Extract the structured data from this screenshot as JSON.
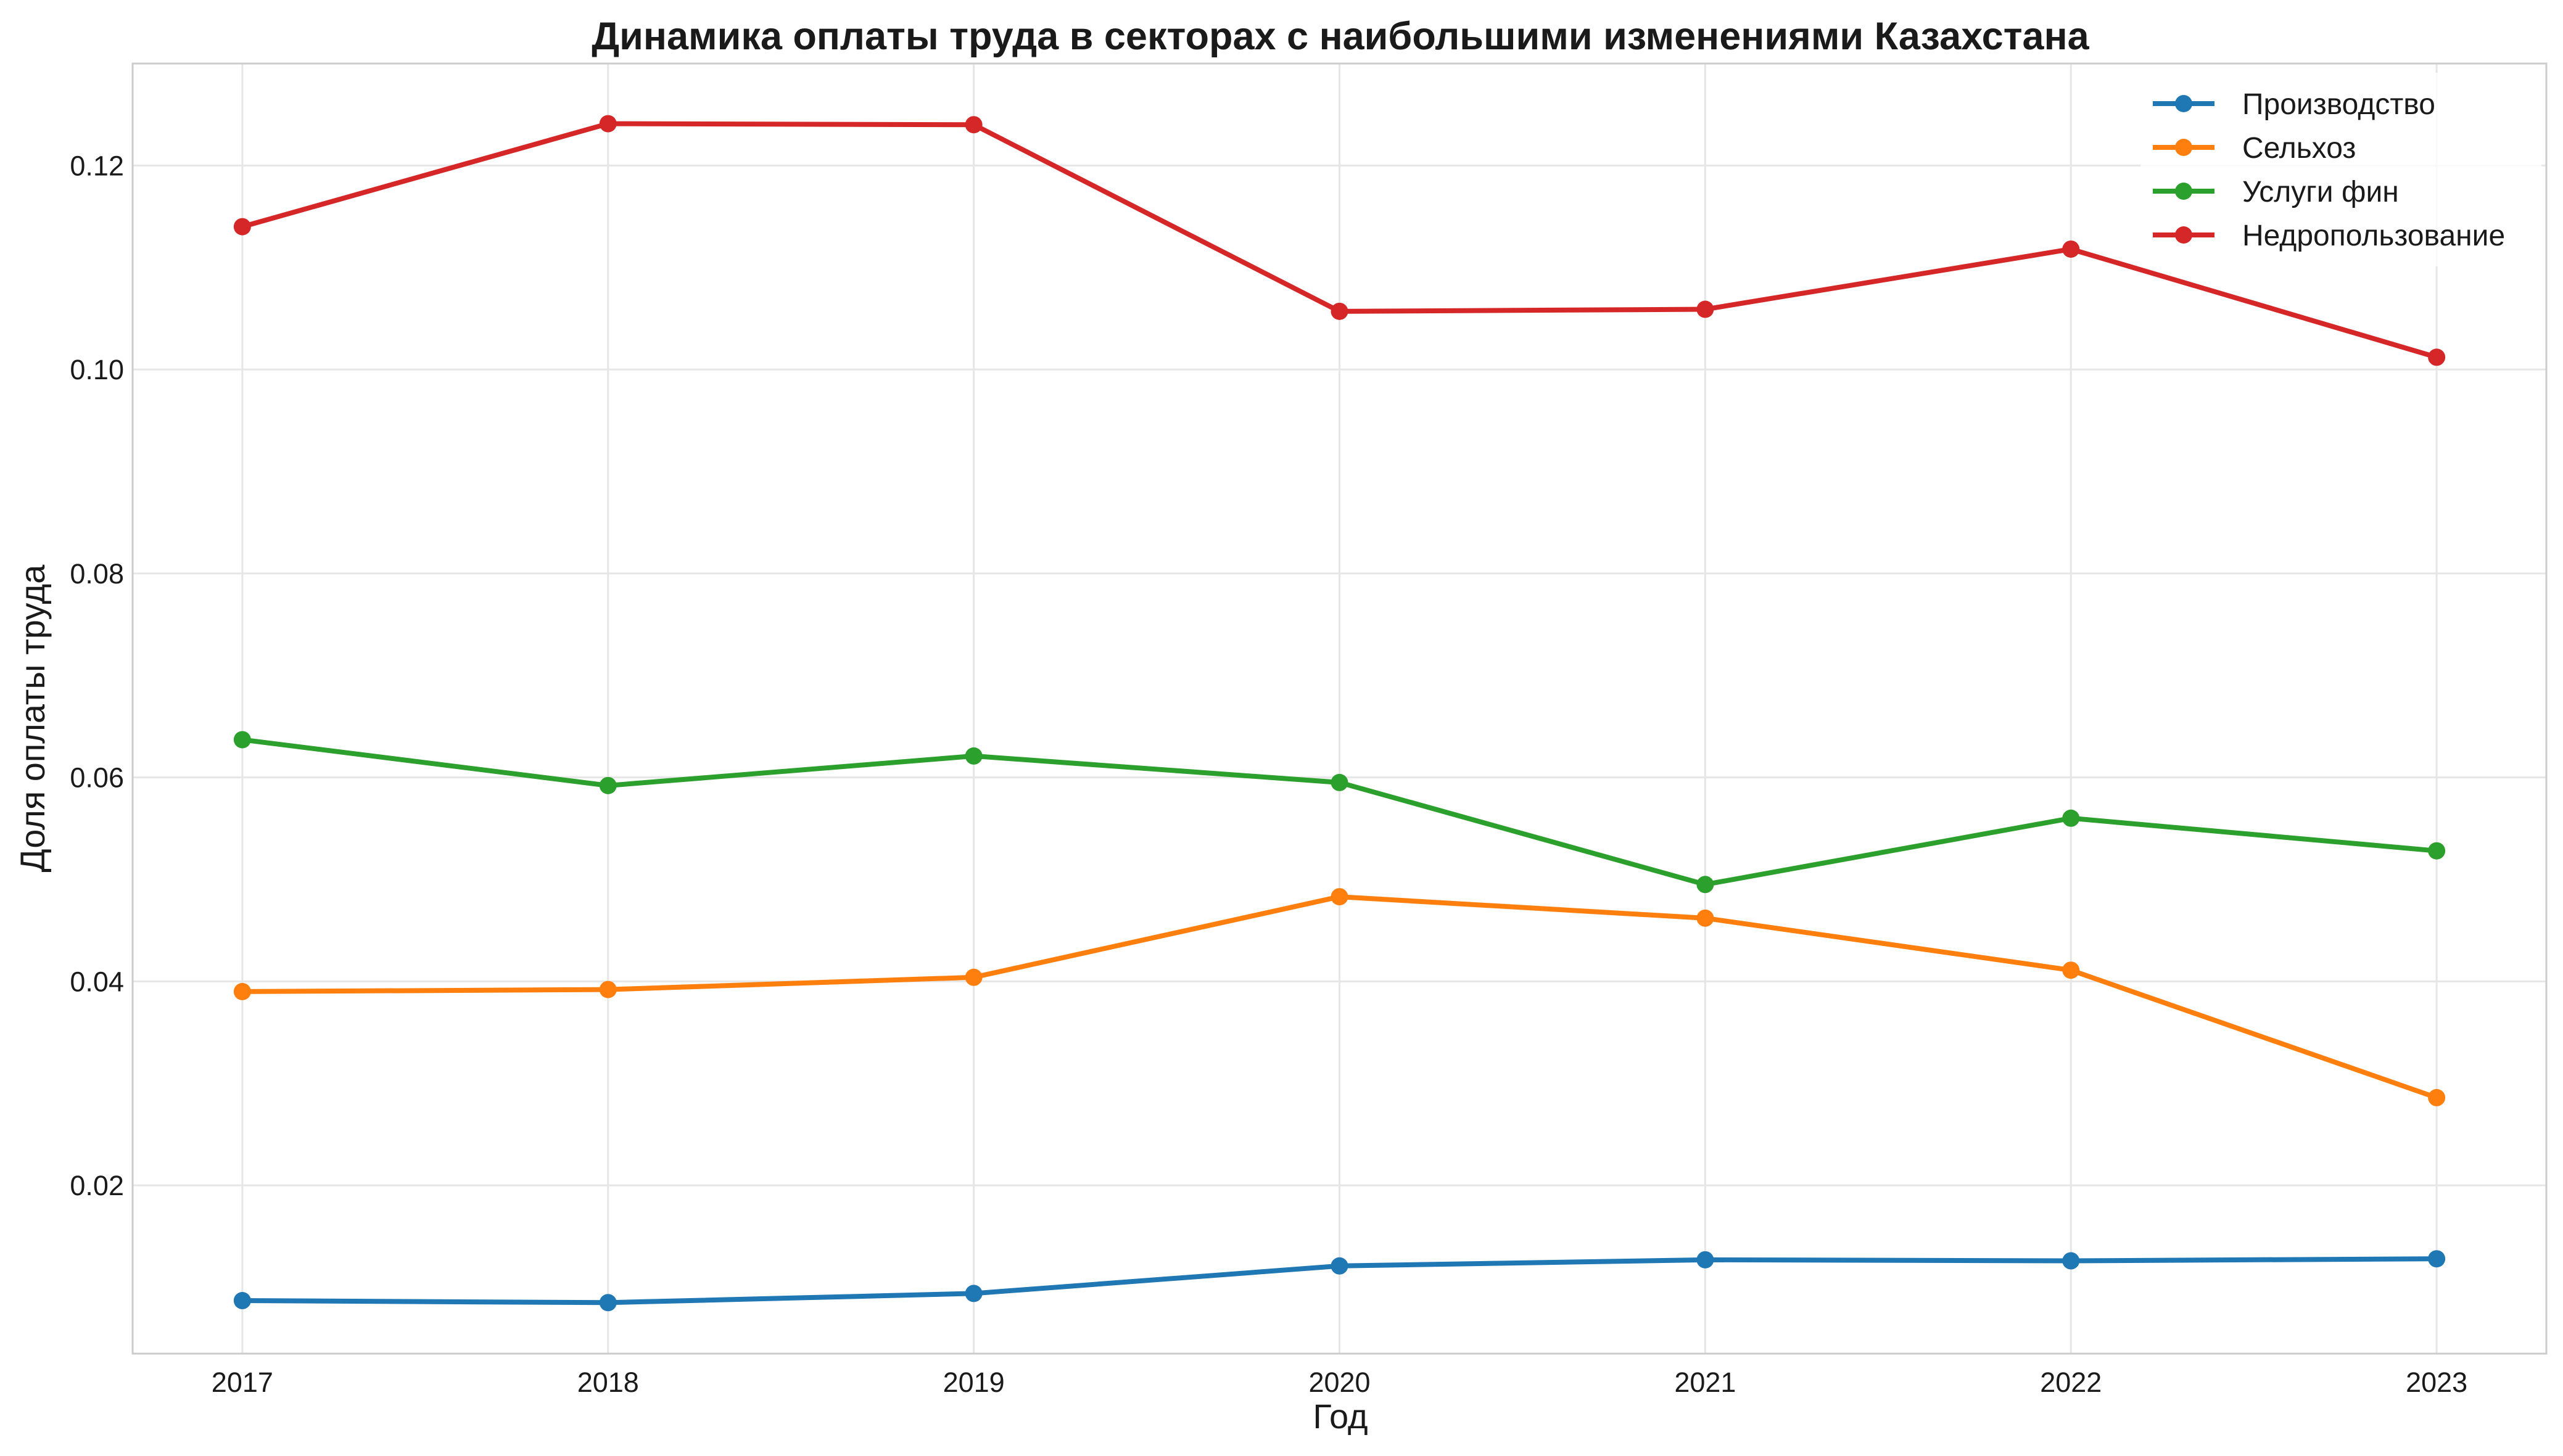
{
  "chart_data": {
    "type": "line",
    "title": "Динамика оплаты труда в секторах с наибольшими изменениями Казахстана",
    "xlabel": "Год",
    "ylabel": "Доля оплаты труда",
    "x": [
      2017,
      2018,
      2019,
      2020,
      2021,
      2022,
      2023
    ],
    "x_ticks": [
      "2017",
      "2018",
      "2019",
      "2020",
      "2021",
      "2022",
      "2023"
    ],
    "xlim": [
      2016.7,
      2023.3
    ],
    "ylim": [
      0.0035,
      0.13
    ],
    "y_ticks": [
      "0.02",
      "0.04",
      "0.06",
      "0.08",
      "0.10",
      "0.12"
    ],
    "grid": true,
    "legend_position": "top-right",
    "series": [
      {
        "name": "Производство",
        "color": "#1f77b4",
        "values": [
          0.0087,
          0.0085,
          0.0094,
          0.0121,
          0.0127,
          0.0126,
          0.0128
        ]
      },
      {
        "name": "Сельхоз",
        "color": "#ff7f0e",
        "values": [
          0.039,
          0.0392,
          0.0404,
          0.0483,
          0.0462,
          0.0411,
          0.0286
        ]
      },
      {
        "name": "Услуги фин",
        "color": "#2ca02c",
        "values": [
          0.0637,
          0.0592,
          0.0621,
          0.0595,
          0.0495,
          0.056,
          0.0528
        ]
      },
      {
        "name": "Недропользование",
        "color": "#d62728",
        "values": [
          0.114,
          0.1241,
          0.124,
          0.1057,
          0.1059,
          0.1118,
          0.1012
        ]
      }
    ]
  }
}
